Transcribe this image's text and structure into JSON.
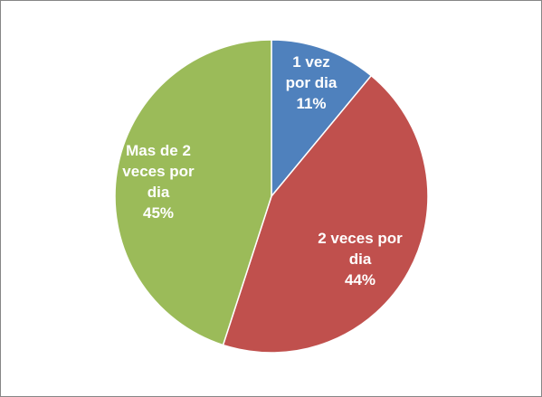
{
  "chart_data": {
    "type": "pie",
    "title": "",
    "categories": [
      "1 vez por dia",
      "2 veces por dia",
      "Mas de 2 veces por dia"
    ],
    "values": [
      11,
      44,
      45
    ],
    "labels": [
      {
        "lines": [
          "1 vez",
          "por dia",
          "11%"
        ]
      },
      {
        "lines": [
          "2 veces por",
          "dia",
          "44%"
        ]
      },
      {
        "lines": [
          "Mas de 2",
          "veces por",
          "dia",
          "45%"
        ]
      }
    ],
    "colors": [
      "#4f81bd",
      "#c0504d",
      "#9bbb59"
    ],
    "start_angle": "12 o'clock",
    "direction": "clockwise",
    "legend": "none"
  }
}
